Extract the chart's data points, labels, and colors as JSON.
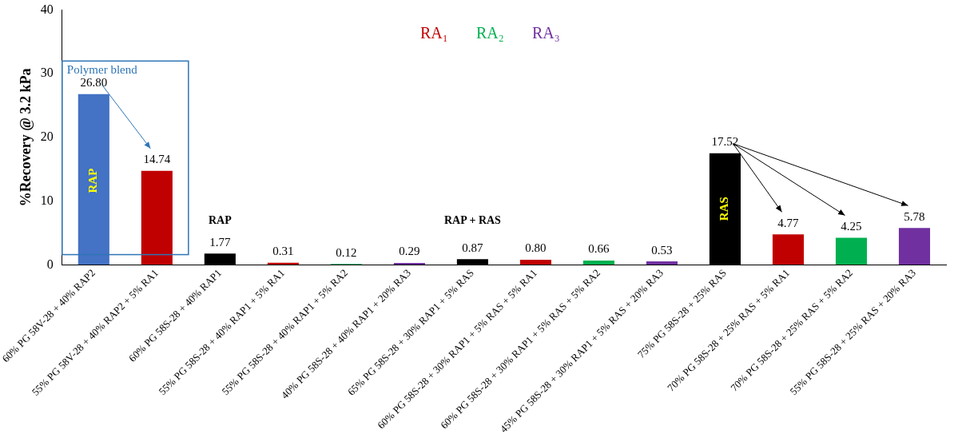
{
  "chart_data": {
    "type": "bar",
    "ylabel": "%Recovery @ 3.2 kPa",
    "categories": [
      "60% PG 58V-28 + 40% RAP2",
      "55% PG 58V-28 + 40% RAP2 + 5% RA1",
      "60% PG 58S-28 + 40% RAP1",
      "55% PG 58S-28 + 40% RAP1 + 5% RA1",
      "55% PG 58S-28 + 40% RAP1 + 5% RA2",
      "40% PG 58S-28 + 40% RAP1 + 20% RA3",
      "65% PG 58S-28 + 30% RAP1 + 5% RAS",
      "60% PG 58S-28 + 30% RAP1 + 5% RAS + 5% RA1",
      "60% PG 58S-28 + 30% RAP1 + 5% RAS + 5% RA2",
      "45% PG 58S-28 + 30% RAP1 + 5% RAS + 20% RA3",
      "75% PG 58S-28 + 25% RAS",
      "70% PG 58S-28 + 25% RAS + 5% RA1",
      "70% PG 58S-28 + 25% RAS + 5% RA2",
      "55% PG 58S-28 + 25% RAS + 20% RA3"
    ],
    "series": [
      {
        "colors": [
          "#4472c4",
          null,
          "#000000",
          null,
          null,
          null,
          "#000000",
          null,
          null,
          null,
          "#000000",
          null,
          null,
          null
        ],
        "values": [
          26.8,
          null,
          1.77,
          null,
          null,
          null,
          0.87,
          null,
          null,
          null,
          17.52,
          null,
          null,
          null
        ],
        "value_labels": [
          "26.80",
          null,
          "1.77",
          null,
          null,
          null,
          "0.87",
          null,
          null,
          null,
          "17.52",
          null,
          null,
          null
        ]
      },
      {
        "name": "RA₁",
        "color": "#c00000",
        "values": [
          null,
          14.74,
          null,
          0.31,
          null,
          null,
          null,
          0.8,
          null,
          null,
          null,
          4.77,
          null,
          null
        ],
        "value_labels": [
          null,
          "14.74",
          null,
          "0.31",
          null,
          null,
          null,
          "0.80",
          null,
          null,
          null,
          "4.77",
          null,
          null
        ]
      },
      {
        "name": "RA₂",
        "color": "#00b050",
        "values": [
          null,
          null,
          null,
          null,
          0.12,
          null,
          null,
          null,
          0.66,
          null,
          null,
          null,
          4.25,
          null
        ],
        "value_labels": [
          null,
          null,
          null,
          null,
          "0.12",
          null,
          null,
          null,
          "0.66",
          null,
          null,
          null,
          "4.25",
          null
        ]
      },
      {
        "name": "RA₃",
        "color": "#7030a0",
        "values": [
          null,
          null,
          null,
          null,
          null,
          0.29,
          null,
          null,
          null,
          0.53,
          null,
          null,
          null,
          5.78
        ],
        "value_labels": [
          null,
          null,
          null,
          null,
          null,
          "0.29",
          null,
          null,
          null,
          "0.53",
          null,
          null,
          null,
          "5.78"
        ]
      }
    ],
    "ylim": [
      0,
      40
    ],
    "yticks": [
      0,
      10,
      20,
      30,
      40
    ],
    "grid": false,
    "legend": "top",
    "annotations": [
      "Polymer blend",
      "RAP",
      "RAP",
      "RAP + RAS",
      "RAS"
    ]
  }
}
